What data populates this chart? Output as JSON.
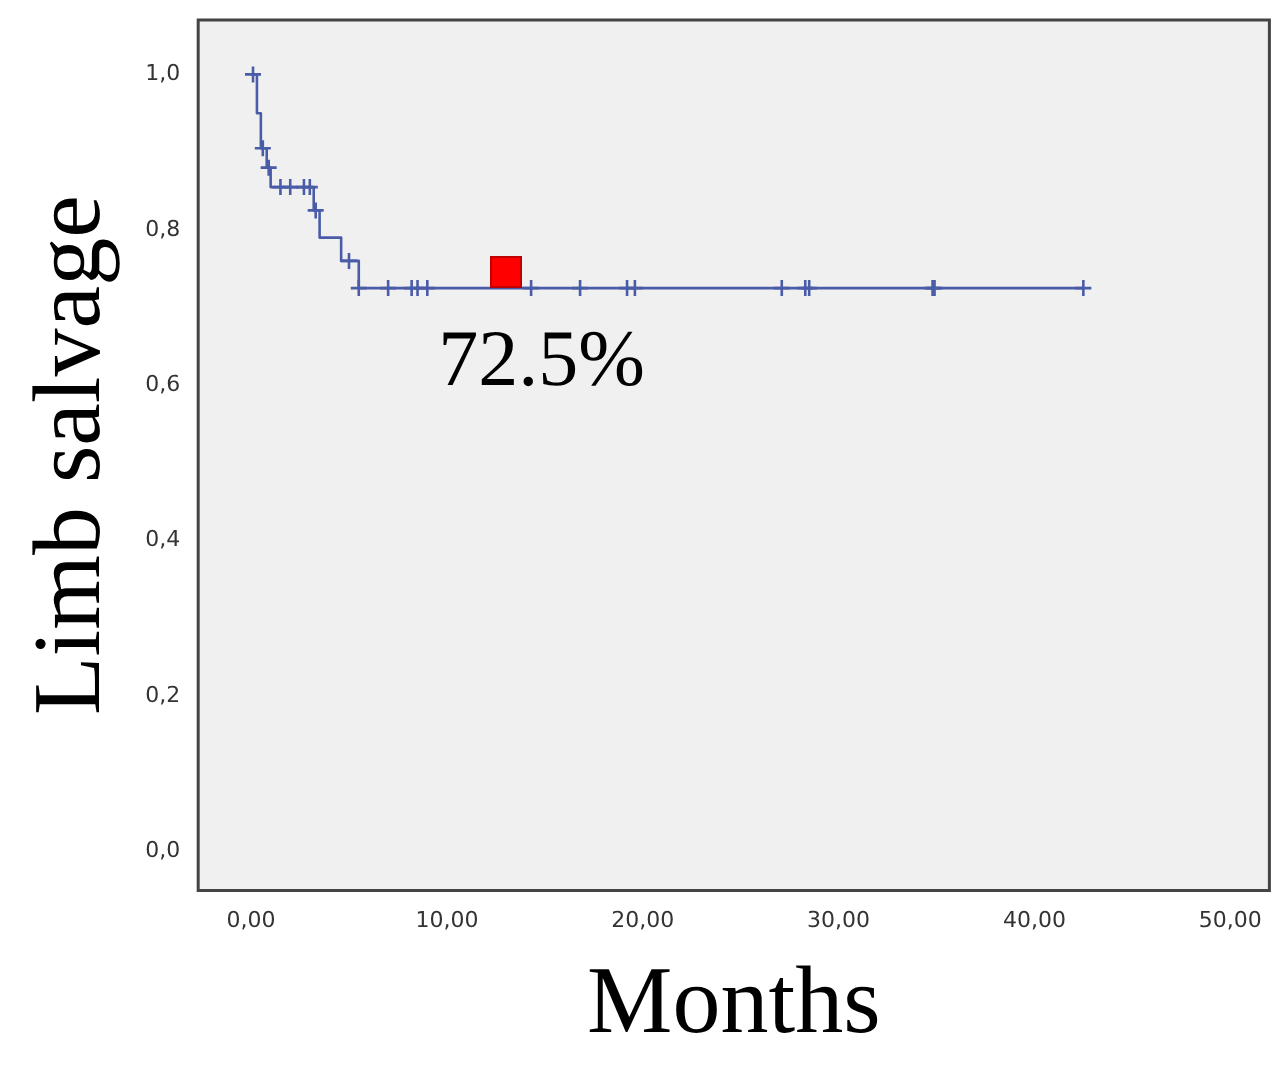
{
  "chart_data": {
    "type": "step",
    "xlabel": "Months",
    "ylabel": "Limb salvage",
    "series": [
      {
        "color": "#4a5ca8",
        "x": [
          0,
          0.3,
          0.5,
          0.8,
          1.0,
          3.2,
          3.5,
          4.6,
          5.5,
          42.5
        ],
        "values": [
          1.0,
          0.95,
          0.905,
          0.88,
          0.855,
          0.825,
          0.79,
          0.76,
          0.725,
          0.725
        ],
        "marker": "none"
      },
      {
        "type": "scatter",
        "color": "#4a5ca8",
        "x": [
          0.1,
          0.6,
          0.9,
          1.5,
          2.0,
          2.7,
          3.0,
          3.3,
          5.0,
          5.5,
          7.0,
          8.2,
          8.5,
          9.0,
          14.3,
          16.8,
          19.2,
          19.6,
          27.1,
          28.3,
          28.5,
          34.8,
          34.9,
          42.5
        ],
        "values": [
          1.0,
          0.905,
          0.88,
          0.855,
          0.855,
          0.855,
          0.855,
          0.825,
          0.76,
          0.725,
          0.725,
          0.725,
          0.725,
          0.725,
          0.725,
          0.725,
          0.725,
          0.725,
          0.725,
          0.725,
          0.725,
          0.725,
          0.725,
          0.725
        ],
        "marker": "cross"
      }
    ],
    "annotations": [
      {
        "text": "72.5%",
        "x": 13,
        "y": 0.725
      }
    ],
    "xlim": [
      -2.7,
      52
    ],
    "ylim": [
      -0.05,
      1.07
    ],
    "xticks": [
      {
        "value": 0,
        "label": "0,00"
      },
      {
        "value": 10,
        "label": "10,00"
      },
      {
        "value": 20,
        "label": "20,00"
      },
      {
        "value": 30,
        "label": "30,00"
      },
      {
        "value": 40,
        "label": "40,00"
      },
      {
        "value": 50,
        "label": "50,00"
      }
    ],
    "yticks": [
      {
        "value": 0,
        "label": "0,0"
      },
      {
        "value": 0.2,
        "label": "0,2"
      },
      {
        "value": 0.4,
        "label": "0,4"
      },
      {
        "value": 0.6,
        "label": "0,6"
      },
      {
        "value": 0.8,
        "label": "0,8"
      },
      {
        "value": 1.0,
        "label": "1,0"
      }
    ],
    "grid": false,
    "legend": false
  }
}
